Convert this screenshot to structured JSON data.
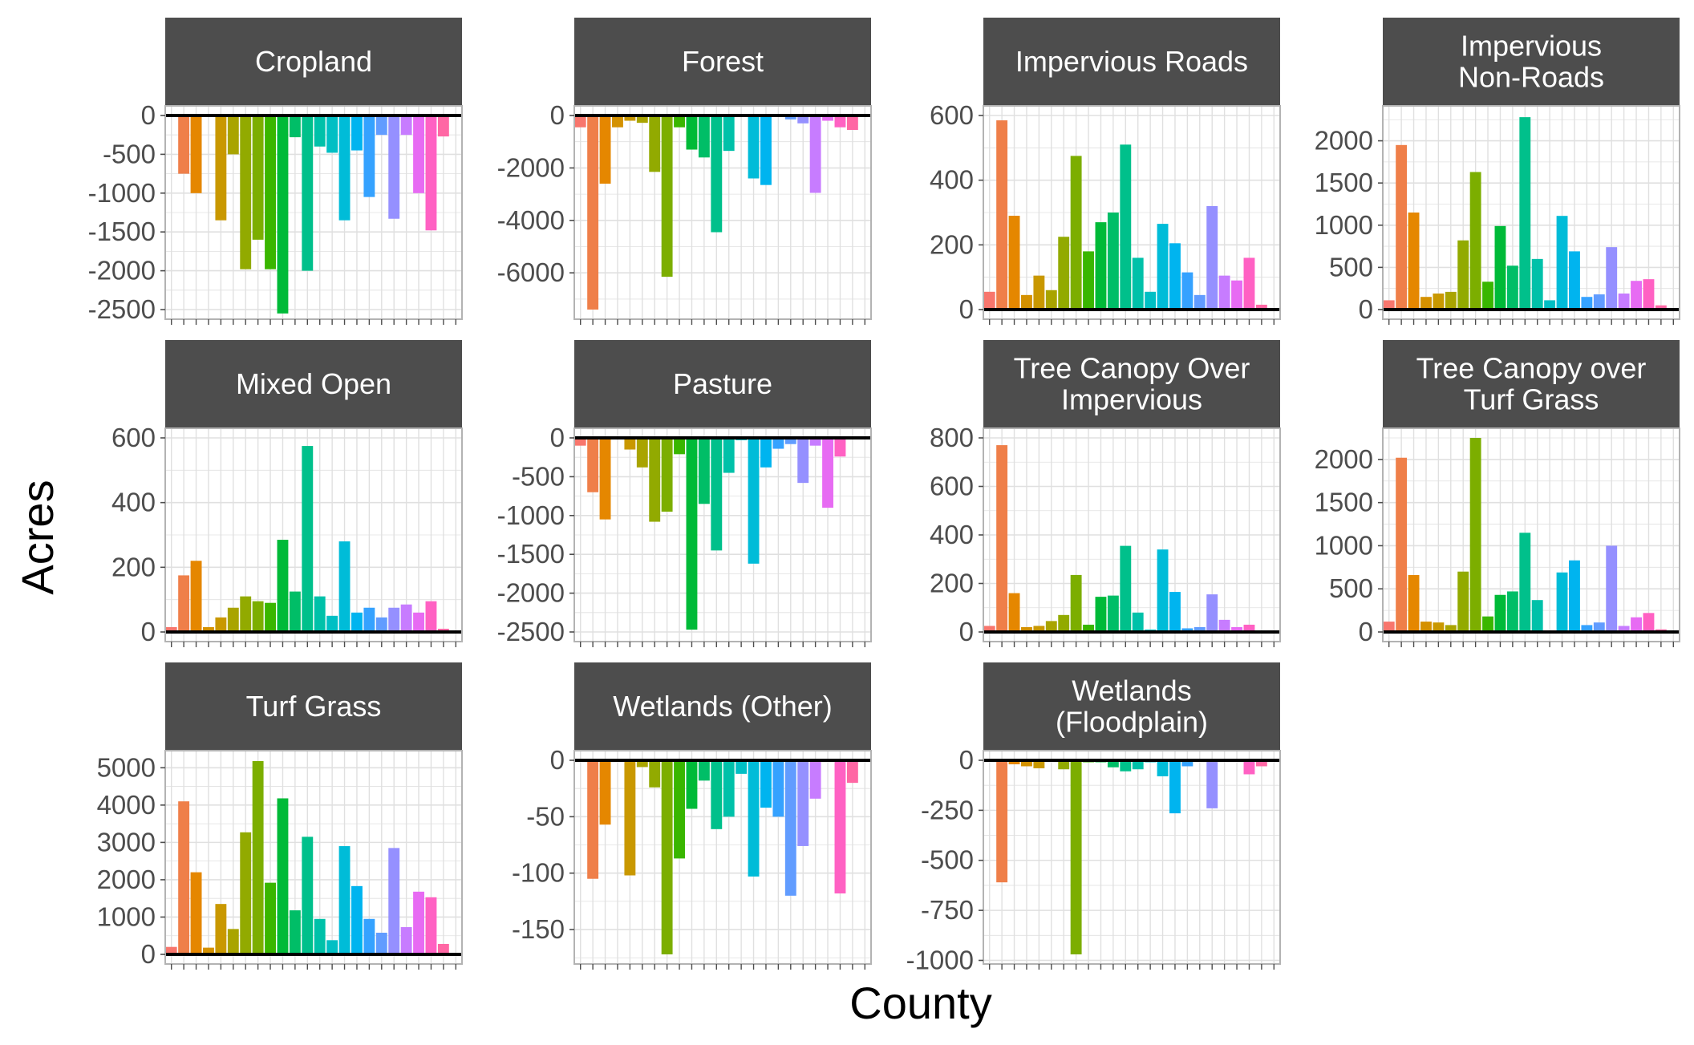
{
  "figure": {
    "xlabel": "County",
    "ylabel": "Acres",
    "strip_color": "#4d4d4d",
    "panel_border_color": "#b3b3b3",
    "grid_color": "#e0e0e0",
    "zero_line_color": "#000000"
  },
  "chart_data": {
    "type": "bar",
    "layout": "faceted grid, 3 rows x 4 columns, free y scales",
    "n_categories": 24,
    "category_colors": [
      "#F8766D",
      "#EF7F49",
      "#E58700",
      "#D49100",
      "#C99800",
      "#A9A400",
      "#92AA00",
      "#7CAE00",
      "#39B600",
      "#00BA38",
      "#00BE67",
      "#00C08B",
      "#00C1A9",
      "#00BFC4",
      "#00BCD8",
      "#00B4EF",
      "#35A2FF",
      "#619CFF",
      "#9590FF",
      "#C77CFF",
      "#E76BF3",
      "#FF61C3",
      "#FF67A4",
      "#FF6C91"
    ],
    "panels": [
      {
        "title": "Cropland",
        "ylim": [
          -2500,
          0
        ],
        "yticks": [
          0,
          -500,
          -1000,
          -1500,
          -2000,
          -2500
        ],
        "ytick_labels": [
          "0",
          "-500",
          "-1000",
          "-1500",
          "-2000",
          "-2500"
        ],
        "values": [
          0,
          -750,
          -1000,
          0,
          -1350,
          -500,
          -1980,
          -1600,
          -1980,
          -2550,
          -280,
          -2000,
          -400,
          -480,
          -1350,
          -450,
          -1050,
          -250,
          -1330,
          -250,
          -1000,
          -1480,
          -270,
          0
        ]
      },
      {
        "title": "Forest",
        "ylim": [
          -7400,
          0
        ],
        "yticks": [
          0,
          -2000,
          -4000,
          -6000
        ],
        "ytick_labels": [
          "0",
          "-2000",
          "-4000",
          "-6000"
        ],
        "values": [
          -450,
          -7400,
          -2600,
          -450,
          -200,
          -280,
          -2150,
          -6150,
          -450,
          -1300,
          -1600,
          -4450,
          -1350,
          0,
          -2400,
          -2650,
          0,
          -150,
          -300,
          -2950,
          -200,
          -450,
          -550,
          0
        ]
      },
      {
        "title": "Impervious Roads",
        "ylim": [
          0,
          600
        ],
        "yticks": [
          0,
          200,
          400,
          600
        ],
        "ytick_labels": [
          "0",
          "200",
          "400",
          "600"
        ],
        "values": [
          55,
          585,
          290,
          45,
          105,
          60,
          225,
          475,
          180,
          270,
          300,
          510,
          160,
          55,
          265,
          205,
          115,
          45,
          320,
          105,
          90,
          160,
          15,
          0
        ]
      },
      {
        "title": "Impervious Non-Roads",
        "title_lines": [
          "Impervious",
          "Non-Roads"
        ],
        "ylim": [
          0,
          2300
        ],
        "yticks": [
          0,
          500,
          1000,
          1500,
          2000
        ],
        "ytick_labels": [
          "0",
          "500",
          "1000",
          "1500",
          "2000"
        ],
        "values": [
          110,
          1950,
          1150,
          150,
          190,
          210,
          820,
          1630,
          330,
          990,
          520,
          2280,
          600,
          110,
          1110,
          690,
          150,
          180,
          740,
          190,
          340,
          360,
          50,
          0
        ]
      },
      {
        "title": "Mixed Open",
        "ylim": [
          0,
          600
        ],
        "yticks": [
          0,
          200,
          400,
          600
        ],
        "ytick_labels": [
          "0",
          "200",
          "400",
          "600"
        ],
        "values": [
          15,
          175,
          220,
          15,
          45,
          75,
          110,
          95,
          90,
          285,
          125,
          575,
          110,
          50,
          280,
          60,
          75,
          45,
          75,
          85,
          60,
          95,
          10,
          0
        ]
      },
      {
        "title": "Pasture",
        "ylim": [
          -2500,
          0
        ],
        "yticks": [
          0,
          -500,
          -1000,
          -1500,
          -2000,
          -2500
        ],
        "ytick_labels": [
          "0",
          "-500",
          "-1000",
          "-1500",
          "-2000",
          "-2500"
        ],
        "values": [
          -100,
          -700,
          -1050,
          0,
          -150,
          -380,
          -1080,
          -950,
          -210,
          -2470,
          -850,
          -1450,
          -450,
          -30,
          -1620,
          -380,
          -140,
          -80,
          -580,
          -100,
          -900,
          -240,
          0,
          0
        ]
      },
      {
        "title": "Tree Canopy Over Impervious",
        "title_lines": [
          "Tree Canopy Over",
          "Impervious"
        ],
        "ylim": [
          0,
          800
        ],
        "yticks": [
          0,
          200,
          400,
          600,
          800
        ],
        "ytick_labels": [
          "0",
          "200",
          "400",
          "600",
          "800"
        ],
        "values": [
          25,
          770,
          160,
          20,
          25,
          45,
          70,
          235,
          30,
          145,
          150,
          355,
          80,
          10,
          340,
          165,
          15,
          20,
          155,
          50,
          20,
          30,
          0,
          0
        ]
      },
      {
        "title": "Tree Canopy over Turf Grass",
        "title_lines": [
          "Tree Canopy over",
          "Turf Grass"
        ],
        "ylim": [
          0,
          2250
        ],
        "yticks": [
          0,
          500,
          1000,
          1500,
          2000
        ],
        "ytick_labels": [
          "0",
          "500",
          "1000",
          "1500",
          "2000"
        ],
        "values": [
          120,
          2020,
          660,
          120,
          110,
          80,
          700,
          2250,
          180,
          430,
          470,
          1150,
          370,
          10,
          690,
          830,
          80,
          110,
          1000,
          70,
          170,
          220,
          30,
          0
        ]
      },
      {
        "title": "Turf Grass",
        "ylim": [
          0,
          5200
        ],
        "yticks": [
          0,
          1000,
          2000,
          3000,
          4000,
          5000
        ],
        "ytick_labels": [
          "0",
          "1000",
          "2000",
          "3000",
          "4000",
          "5000"
        ],
        "values": [
          200,
          4100,
          2200,
          180,
          1350,
          680,
          3270,
          5180,
          1920,
          4180,
          1180,
          3150,
          950,
          380,
          2900,
          1830,
          950,
          580,
          2850,
          730,
          1680,
          1530,
          280,
          0
        ]
      },
      {
        "title": "Wetlands (Other)",
        "ylim": [
          -172,
          0
        ],
        "yticks": [
          0,
          -50,
          -100,
          -150
        ],
        "ytick_labels": [
          "0",
          "-50",
          "-100",
          "-150"
        ],
        "values": [
          0,
          -105,
          -57,
          0,
          -102,
          -6,
          -24,
          -172,
          -87,
          -43,
          -18,
          -61,
          -50,
          -12,
          -103,
          -42,
          -50,
          -120,
          -76,
          -34,
          0,
          -118,
          -20,
          0
        ]
      },
      {
        "title": "Wetlands (Floodplain)",
        "title_lines": [
          "Wetlands",
          "(Floodplain)"
        ],
        "ylim": [
          -970,
          0
        ],
        "yticks": [
          0,
          -250,
          -500,
          -750,
          -1000
        ],
        "ytick_labels": [
          "0",
          "-250",
          "-500",
          "-750",
          "-1000"
        ],
        "values": [
          -5,
          -610,
          -20,
          -30,
          -40,
          -5,
          -45,
          -970,
          -10,
          -10,
          -35,
          -55,
          -45,
          -10,
          -80,
          -265,
          -30,
          -5,
          -240,
          0,
          -5,
          -70,
          -30,
          0
        ]
      }
    ]
  }
}
